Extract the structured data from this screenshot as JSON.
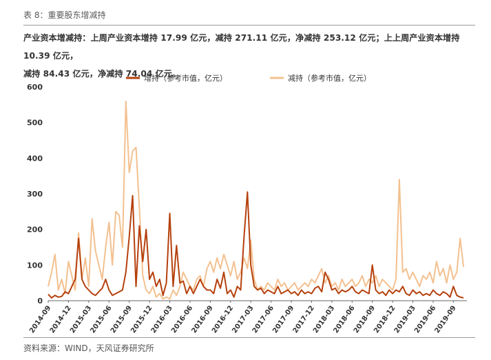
{
  "header": {
    "caption": "表 8：重要股东增减持",
    "summary_line1": "产业资本增减持：上周产业资本增持 17.99 亿元，减持 271.11 亿元，净减持 253.12 亿元；上上周产业资本增持 10.39 亿元，",
    "summary_line2": "减持 84.43 亿元，净减持 74.04 亿元。"
  },
  "footer": {
    "source": "资料来源：WIND，天风证券研究所"
  },
  "colors": {
    "increase": "#b5400c",
    "decrease": "#f3c08f",
    "text": "#333333"
  },
  "chart_data": {
    "type": "line",
    "ylim": [
      0,
      600
    ],
    "yticks": [
      0,
      100,
      200,
      300,
      400,
      500,
      600
    ],
    "xtick_labels": [
      "2014-09",
      "2014-12",
      "2015-03",
      "2015-06",
      "2015-09",
      "2015-12",
      "2016-03",
      "2016-06",
      "2016-09",
      "2016-12",
      "2017-03",
      "2017-06",
      "2017-09",
      "2017-12",
      "2018-03",
      "2018-06",
      "2018-09",
      "2018-12",
      "2019-03",
      "2019-06",
      "2019-09"
    ],
    "x_domain_months": [
      0,
      62
    ],
    "legend_position": "top-center",
    "series": [
      {
        "name": "增持（参考市值，亿元）",
        "color": "#b5400c",
        "points": [
          [
            0,
            18
          ],
          [
            0.5,
            8
          ],
          [
            1,
            15
          ],
          [
            1.5,
            10
          ],
          [
            2,
            12
          ],
          [
            2.5,
            25
          ],
          [
            3,
            20
          ],
          [
            3.5,
            40
          ],
          [
            4,
            60
          ],
          [
            4.5,
            175
          ],
          [
            5,
            60
          ],
          [
            5.5,
            40
          ],
          [
            6,
            30
          ],
          [
            6.5,
            20
          ],
          [
            7,
            15
          ],
          [
            7.5,
            25
          ],
          [
            8,
            35
          ],
          [
            8.5,
            60
          ],
          [
            9,
            30
          ],
          [
            9.5,
            15
          ],
          [
            10,
            20
          ],
          [
            10.5,
            25
          ],
          [
            11,
            30
          ],
          [
            11.5,
            80
          ],
          [
            12,
            180
          ],
          [
            12.5,
            295
          ],
          [
            13,
            40
          ],
          [
            13.5,
            210
          ],
          [
            14,
            110
          ],
          [
            14.5,
            200
          ],
          [
            15,
            60
          ],
          [
            15.5,
            80
          ],
          [
            16,
            40
          ],
          [
            16.5,
            60
          ],
          [
            17,
            15
          ],
          [
            17.5,
            50
          ],
          [
            18,
            245
          ],
          [
            18.5,
            40
          ],
          [
            19,
            155
          ],
          [
            19.5,
            50
          ],
          [
            20,
            55
          ],
          [
            20.5,
            20
          ],
          [
            21,
            40
          ],
          [
            21.5,
            20
          ],
          [
            22,
            40
          ],
          [
            22.5,
            60
          ],
          [
            23,
            40
          ],
          [
            23.5,
            30
          ],
          [
            24,
            30
          ],
          [
            24.5,
            20
          ],
          [
            25,
            60
          ],
          [
            25.5,
            35
          ],
          [
            26,
            80
          ],
          [
            26.5,
            20
          ],
          [
            27,
            30
          ],
          [
            27.5,
            10
          ],
          [
            28,
            40
          ],
          [
            28.5,
            30
          ],
          [
            29,
            180
          ],
          [
            29.5,
            305
          ],
          [
            30,
            100
          ],
          [
            30.5,
            40
          ],
          [
            31,
            30
          ],
          [
            31.5,
            35
          ],
          [
            32,
            20
          ],
          [
            32.5,
            30
          ],
          [
            33,
            25
          ],
          [
            33.5,
            20
          ],
          [
            34,
            40
          ],
          [
            34.5,
            20
          ],
          [
            35,
            25
          ],
          [
            35.5,
            30
          ],
          [
            36,
            20
          ],
          [
            36.5,
            25
          ],
          [
            37,
            15
          ],
          [
            37.5,
            30
          ],
          [
            38,
            20
          ],
          [
            38.5,
            25
          ],
          [
            39,
            20
          ],
          [
            39.5,
            35
          ],
          [
            40,
            40
          ],
          [
            40.5,
            25
          ],
          [
            41,
            80
          ],
          [
            41.5,
            60
          ],
          [
            42,
            30
          ],
          [
            42.5,
            35
          ],
          [
            43,
            20
          ],
          [
            43.5,
            30
          ],
          [
            44,
            25
          ],
          [
            44.5,
            30
          ],
          [
            45,
            40
          ],
          [
            45.5,
            25
          ],
          [
            46,
            20
          ],
          [
            46.5,
            30
          ],
          [
            47,
            25
          ],
          [
            47.5,
            20
          ],
          [
            48,
            100
          ],
          [
            48.5,
            30
          ],
          [
            49,
            20
          ],
          [
            49.5,
            25
          ],
          [
            50,
            15
          ],
          [
            50.5,
            30
          ],
          [
            51,
            20
          ],
          [
            51.5,
            30
          ],
          [
            52,
            25
          ],
          [
            52.5,
            40
          ],
          [
            53,
            20
          ],
          [
            53.5,
            15
          ],
          [
            54,
            30
          ],
          [
            54.5,
            20
          ],
          [
            55,
            25
          ],
          [
            55.5,
            15
          ],
          [
            56,
            20
          ],
          [
            56.5,
            15
          ],
          [
            57,
            30
          ],
          [
            57.5,
            20
          ],
          [
            58,
            15
          ],
          [
            58.5,
            25
          ],
          [
            59,
            20
          ],
          [
            59.5,
            10
          ],
          [
            60,
            40
          ],
          [
            60.5,
            15
          ],
          [
            61,
            10
          ],
          [
            61.5,
            8
          ]
        ]
      },
      {
        "name": "减持（参考市值，亿元）",
        "color": "#f3c08f",
        "points": [
          [
            0,
            40
          ],
          [
            0.5,
            80
          ],
          [
            1,
            130
          ],
          [
            1.5,
            30
          ],
          [
            2,
            60
          ],
          [
            2.5,
            20
          ],
          [
            3,
            110
          ],
          [
            3.5,
            70
          ],
          [
            4,
            30
          ],
          [
            4.5,
            190
          ],
          [
            5,
            60
          ],
          [
            5.5,
            120
          ],
          [
            6,
            40
          ],
          [
            6.5,
            230
          ],
          [
            7,
            140
          ],
          [
            7.5,
            100
          ],
          [
            8,
            60
          ],
          [
            8.5,
            150
          ],
          [
            9,
            220
          ],
          [
            9.5,
            100
          ],
          [
            10,
            250
          ],
          [
            10.5,
            240
          ],
          [
            11,
            150
          ],
          [
            11.5,
            560
          ],
          [
            12,
            360
          ],
          [
            12.5,
            420
          ],
          [
            13,
            430
          ],
          [
            13.5,
            260
          ],
          [
            14,
            70
          ],
          [
            14.5,
            30
          ],
          [
            15,
            20
          ],
          [
            15.5,
            40
          ],
          [
            16,
            10
          ],
          [
            16.5,
            20
          ],
          [
            17,
            5
          ],
          [
            17.5,
            10
          ],
          [
            18,
            5
          ],
          [
            18.5,
            30
          ],
          [
            19,
            15
          ],
          [
            19.5,
            40
          ],
          [
            20,
            80
          ],
          [
            20.5,
            60
          ],
          [
            21,
            40
          ],
          [
            21.5,
            30
          ],
          [
            22,
            60
          ],
          [
            22.5,
            70
          ],
          [
            23,
            40
          ],
          [
            23.5,
            90
          ],
          [
            24,
            110
          ],
          [
            24.5,
            80
          ],
          [
            25,
            120
          ],
          [
            25.5,
            90
          ],
          [
            26,
            130
          ],
          [
            26.5,
            100
          ],
          [
            27,
            70
          ],
          [
            27.5,
            110
          ],
          [
            28,
            60
          ],
          [
            28.5,
            80
          ],
          [
            29,
            120
          ],
          [
            29.5,
            90
          ],
          [
            30,
            170
          ],
          [
            30.5,
            60
          ],
          [
            31,
            30
          ],
          [
            31.5,
            40
          ],
          [
            32,
            30
          ],
          [
            32.5,
            50
          ],
          [
            33,
            40
          ],
          [
            33.5,
            30
          ],
          [
            34,
            60
          ],
          [
            34.5,
            40
          ],
          [
            35,
            50
          ],
          [
            35.5,
            30
          ],
          [
            36,
            40
          ],
          [
            36.5,
            50
          ],
          [
            37,
            30
          ],
          [
            37.5,
            40
          ],
          [
            38,
            50
          ],
          [
            38.5,
            40
          ],
          [
            39,
            60
          ],
          [
            39.5,
            50
          ],
          [
            40,
            70
          ],
          [
            40.5,
            90
          ],
          [
            41,
            50
          ],
          [
            41.5,
            70
          ],
          [
            42,
            40
          ],
          [
            42.5,
            50
          ],
          [
            43,
            30
          ],
          [
            43.5,
            60
          ],
          [
            44,
            40
          ],
          [
            44.5,
            50
          ],
          [
            45,
            60
          ],
          [
            45.5,
            40
          ],
          [
            46,
            50
          ],
          [
            46.5,
            70
          ],
          [
            47,
            40
          ],
          [
            47.5,
            60
          ],
          [
            48,
            50
          ],
          [
            48.5,
            70
          ],
          [
            49,
            40
          ],
          [
            49.5,
            60
          ],
          [
            50,
            50
          ],
          [
            50.5,
            40
          ],
          [
            51,
            30
          ],
          [
            51.5,
            60
          ],
          [
            52,
            340
          ],
          [
            52.5,
            80
          ],
          [
            53,
            90
          ],
          [
            53.5,
            60
          ],
          [
            54,
            80
          ],
          [
            54.5,
            60
          ],
          [
            55,
            40
          ],
          [
            55.5,
            70
          ],
          [
            56,
            60
          ],
          [
            56.5,
            80
          ],
          [
            57,
            50
          ],
          [
            57.5,
            110
          ],
          [
            58,
            70
          ],
          [
            58.5,
            90
          ],
          [
            59,
            50
          ],
          [
            59.5,
            100
          ],
          [
            60,
            60
          ],
          [
            60.5,
            80
          ],
          [
            61,
            175
          ],
          [
            61.5,
            95
          ]
        ]
      }
    ]
  }
}
